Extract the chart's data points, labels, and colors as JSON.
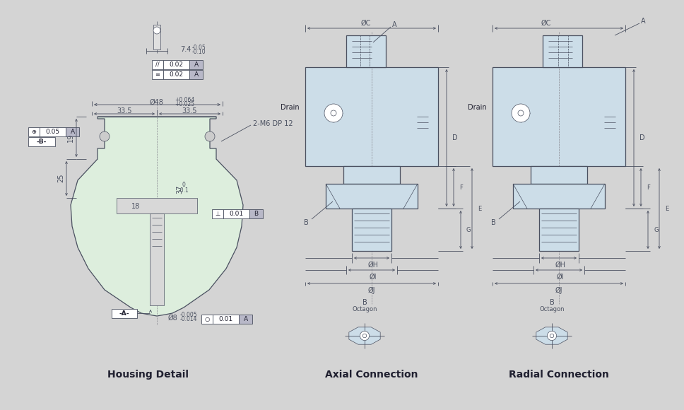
{
  "bg_color": "#d4d4d4",
  "title_housing": "Housing Detail",
  "title_axial": "Axial Connection",
  "title_radial": "Radial Connection",
  "housing_fill": "#ddeedd",
  "blue_fill": "#ccdde8",
  "line_color": "#4a5060",
  "dim_color": "#4a5060",
  "text_color": "#202030",
  "gdt_gray": "#b8b8c8"
}
